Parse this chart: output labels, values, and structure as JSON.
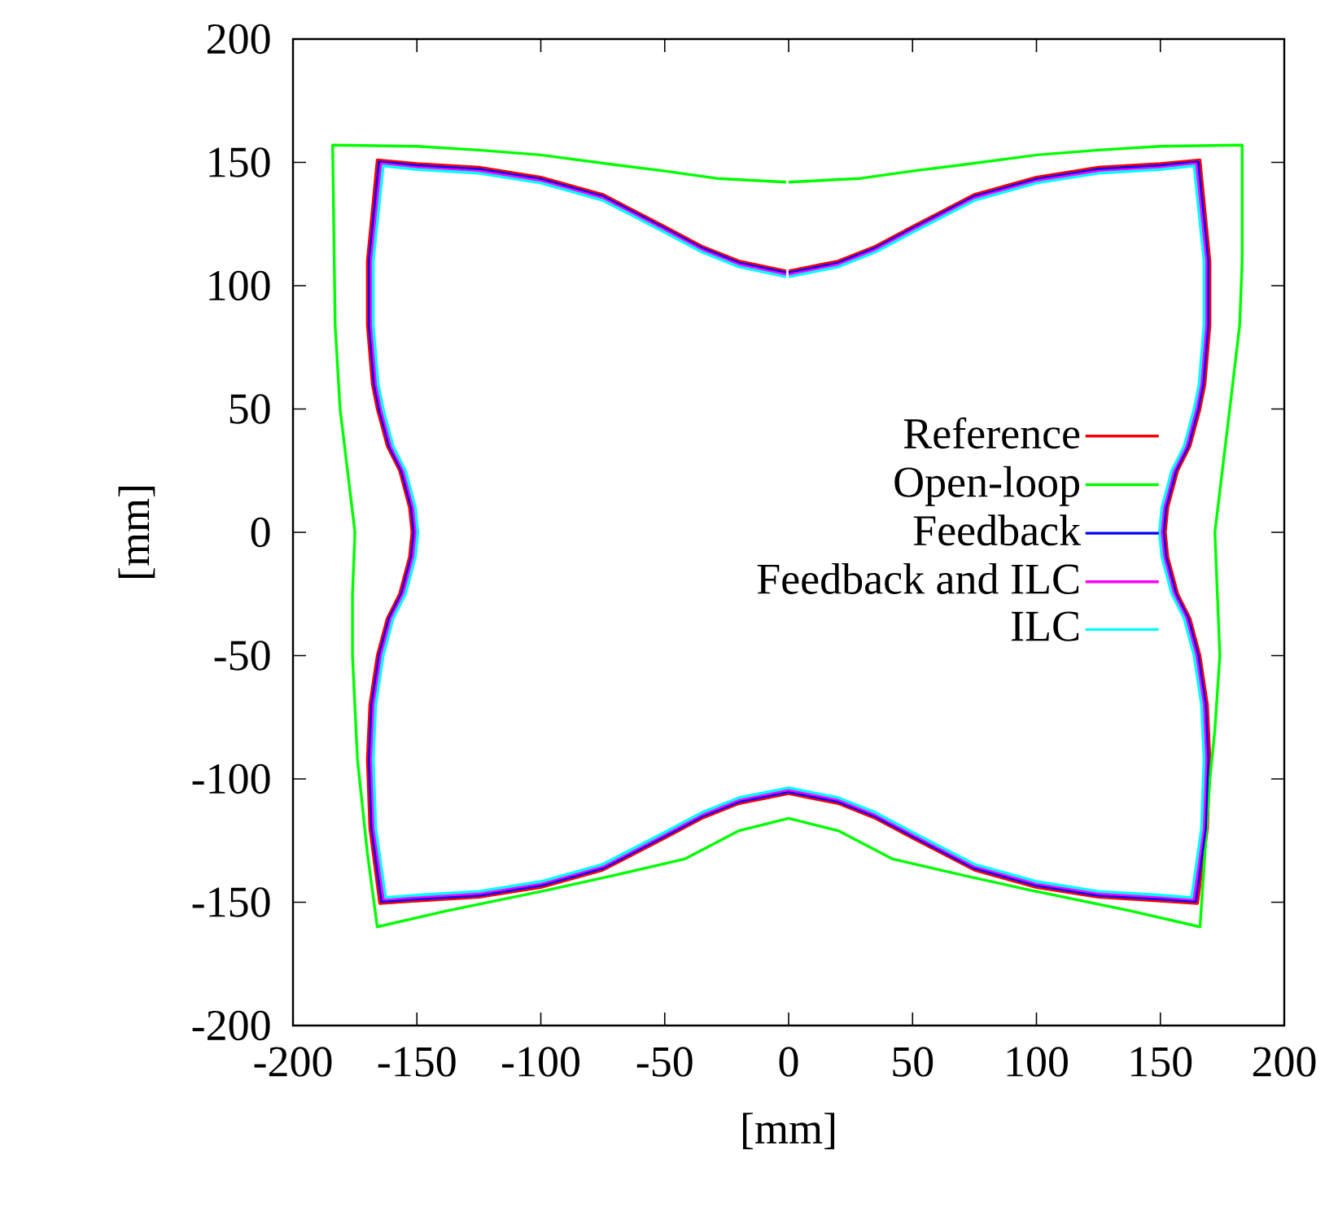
{
  "chart_data": {
    "type": "line",
    "xlabel": "[mm]",
    "ylabel": "[mm]",
    "xlim": [
      -200,
      200
    ],
    "ylim": [
      -200,
      200
    ],
    "xticks": [
      -200,
      -150,
      -100,
      -50,
      0,
      50,
      100,
      150,
      200
    ],
    "yticks": [
      -200,
      -150,
      -100,
      -50,
      0,
      50,
      100,
      150,
      200
    ],
    "legend": "right",
    "grid": false,
    "series": [
      {
        "name": "Reference",
        "color": "#ff0000",
        "x": [
          0,
          20,
          35,
          50,
          75,
          100,
          125,
          150,
          166,
          170,
          170,
          168,
          166,
          162,
          157,
          153,
          152,
          153,
          157,
          162,
          166,
          169,
          170,
          169,
          165,
          150,
          125,
          100,
          75,
          50,
          35,
          20,
          0,
          -20,
          -35,
          -50,
          -75,
          -100,
          -125,
          -150,
          -165,
          -169,
          -170,
          -169,
          -166,
          -162,
          -157,
          -153,
          -152,
          -153,
          -157,
          -162,
          -166,
          -168,
          -170,
          -170,
          -166,
          -150,
          -125,
          -100,
          -75,
          -50,
          -35,
          -20,
          -1
        ],
        "values": [
          106,
          110,
          116,
          124,
          137,
          144,
          148,
          149.5,
          151,
          110,
          84,
          60,
          50,
          35,
          25,
          10,
          0,
          -10,
          -25,
          -35,
          -50,
          -70,
          -92,
          -120,
          -150.5,
          -149.5,
          -148,
          -144,
          -137,
          -124,
          -116,
          -110,
          -106,
          -110,
          -116,
          -124,
          -137,
          -144,
          -148,
          -149.5,
          -150.5,
          -120,
          -92,
          -70,
          -50,
          -35,
          -25,
          -10,
          0,
          10,
          25,
          35,
          50,
          60,
          84,
          110,
          151,
          149.5,
          148,
          144,
          137,
          124,
          116,
          110,
          106
        ]
      },
      {
        "name": "Open-loop",
        "color": "#00ff00",
        "x": [
          0,
          29,
          50,
          70,
          100,
          125,
          150,
          183,
          183,
          182,
          178,
          175,
          172,
          173,
          174,
          172,
          170,
          166,
          138,
          97,
          70,
          42,
          20,
          0,
          -20,
          -42,
          -70,
          -97,
          -138,
          -166,
          -170,
          -174,
          -176,
          -176,
          -175,
          -178,
          -181,
          -183,
          -184,
          -150,
          -125,
          -100,
          -70,
          -50,
          -29,
          -1
        ],
        "values": [
          142,
          143.5,
          146.5,
          149,
          153,
          155,
          156.5,
          157,
          110,
          84,
          50,
          25,
          0,
          -25,
          -50,
          -80,
          -100,
          -160,
          -153.5,
          -145,
          -139,
          -132.5,
          -121,
          -116,
          -121,
          -132.5,
          -139,
          -145,
          -153.5,
          -160,
          -130,
          -92,
          -50,
          -25,
          0,
          25,
          50,
          84,
          157,
          156.5,
          155,
          153,
          149,
          146.5,
          143.5,
          142
        ]
      },
      {
        "name": "Feedback",
        "color": "#0000ff",
        "x": [
          0,
          20,
          35,
          50,
          75,
          100,
          125,
          150,
          165.2,
          169.2,
          169.2,
          167.2,
          165.2,
          161.2,
          156.2,
          152.2,
          151.2,
          152.2,
          156.2,
          161.2,
          165.2,
          168.2,
          169.2,
          168.2,
          164.2,
          150,
          125,
          100,
          75,
          50,
          35,
          20,
          0,
          -20,
          -35,
          -50,
          -75,
          -100,
          -125,
          -150,
          -164.2,
          -168.2,
          -169.2,
          -168.2,
          -165.2,
          -161.2,
          -156.2,
          -152.2,
          -151.2,
          -152.2,
          -156.2,
          -161.2,
          -165.2,
          -167.2,
          -169.2,
          -169.2,
          -165.2,
          -150,
          -125,
          -100,
          -75,
          -50,
          -35,
          -20,
          -1
        ],
        "values": [
          105.2,
          109.2,
          115.2,
          123.2,
          136.2,
          143.2,
          147.2,
          148.7,
          150.2,
          110,
          84,
          60,
          50,
          35,
          25,
          10,
          0,
          -10,
          -25,
          -35,
          -50,
          -70,
          -92,
          -120,
          -149.7,
          -148.7,
          -147.2,
          -143.2,
          -136.2,
          -123.2,
          -115.2,
          -109.2,
          -105.2,
          -109.2,
          -115.2,
          -123.2,
          -136.2,
          -143.2,
          -147.2,
          -148.7,
          -149.7,
          -120,
          -92,
          -70,
          -50,
          -35,
          -25,
          -10,
          0,
          10,
          25,
          35,
          50,
          60,
          84,
          110,
          150.2,
          148.7,
          147.2,
          143.2,
          136.2,
          123.2,
          115.2,
          109.2,
          105.2
        ]
      },
      {
        "name": "Feedback and ILC",
        "color": "#ff00ff",
        "x": [
          0,
          20,
          35,
          50,
          75,
          100,
          125,
          150,
          164.4,
          168.4,
          168.4,
          166.4,
          164.4,
          160.4,
          155.4,
          151.4,
          150.4,
          151.4,
          155.4,
          160.4,
          164.4,
          167.4,
          168.4,
          167.4,
          163.4,
          150,
          125,
          100,
          75,
          50,
          35,
          20,
          0,
          -20,
          -35,
          -50,
          -75,
          -100,
          -125,
          -150,
          -163.4,
          -167.4,
          -168.4,
          -167.4,
          -164.4,
          -160.4,
          -155.4,
          -151.4,
          -150.4,
          -151.4,
          -155.4,
          -160.4,
          -164.4,
          -166.4,
          -168.4,
          -168.4,
          -164.4,
          -150,
          -125,
          -100,
          -75,
          -50,
          -35,
          -20,
          -1
        ],
        "values": [
          104.4,
          108.4,
          114.4,
          122.4,
          135.4,
          142.4,
          146.4,
          147.9,
          149.4,
          110,
          84,
          60,
          50,
          35,
          25,
          10,
          0,
          -10,
          -25,
          -35,
          -50,
          -70,
          -92,
          -120,
          -148.9,
          -147.9,
          -146.4,
          -142.4,
          -135.4,
          -122.4,
          -114.4,
          -108.4,
          -104.4,
          -108.4,
          -114.4,
          -122.4,
          -135.4,
          -142.4,
          -146.4,
          -147.9,
          -148.9,
          -120,
          -92,
          -70,
          -50,
          -35,
          -25,
          -10,
          0,
          10,
          25,
          35,
          50,
          60,
          84,
          110,
          149.4,
          147.9,
          146.4,
          142.4,
          135.4,
          122.4,
          114.4,
          108.4,
          104.4
        ]
      },
      {
        "name": "ILC",
        "color": "#00ffff",
        "x": [
          0,
          20,
          35,
          50,
          75,
          100,
          125,
          150,
          163.6,
          167.6,
          167.6,
          165.6,
          163.6,
          159.6,
          154.6,
          150.6,
          149.6,
          150.6,
          154.6,
          159.6,
          163.6,
          166.6,
          167.6,
          166.6,
          162.6,
          150,
          125,
          100,
          75,
          50,
          35,
          20,
          0,
          -20,
          -35,
          -50,
          -75,
          -100,
          -125,
          -150,
          -162.6,
          -166.6,
          -167.6,
          -166.6,
          -163.6,
          -159.6,
          -154.6,
          -150.6,
          -149.6,
          -150.6,
          -154.6,
          -159.6,
          -163.6,
          -165.6,
          -167.6,
          -167.6,
          -163.6,
          -150,
          -125,
          -100,
          -75,
          -50,
          -35,
          -20,
          -1
        ],
        "values": [
          103.6,
          107.6,
          113.6,
          121.6,
          134.6,
          141.6,
          145.6,
          147.1,
          148.6,
          110,
          84,
          60,
          50,
          35,
          25,
          10,
          0,
          -10,
          -25,
          -35,
          -50,
          -70,
          -92,
          -120,
          -148.1,
          -147.1,
          -145.6,
          -141.6,
          -134.6,
          -121.6,
          -113.6,
          -107.6,
          -103.6,
          -107.6,
          -113.6,
          -121.6,
          -134.6,
          -141.6,
          -145.6,
          -147.1,
          -148.1,
          -120,
          -92,
          -70,
          -50,
          -35,
          -25,
          -10,
          0,
          10,
          25,
          35,
          50,
          60,
          84,
          110,
          148.6,
          147.1,
          145.6,
          141.6,
          134.6,
          121.6,
          113.6,
          107.6,
          103.6
        ]
      }
    ]
  }
}
